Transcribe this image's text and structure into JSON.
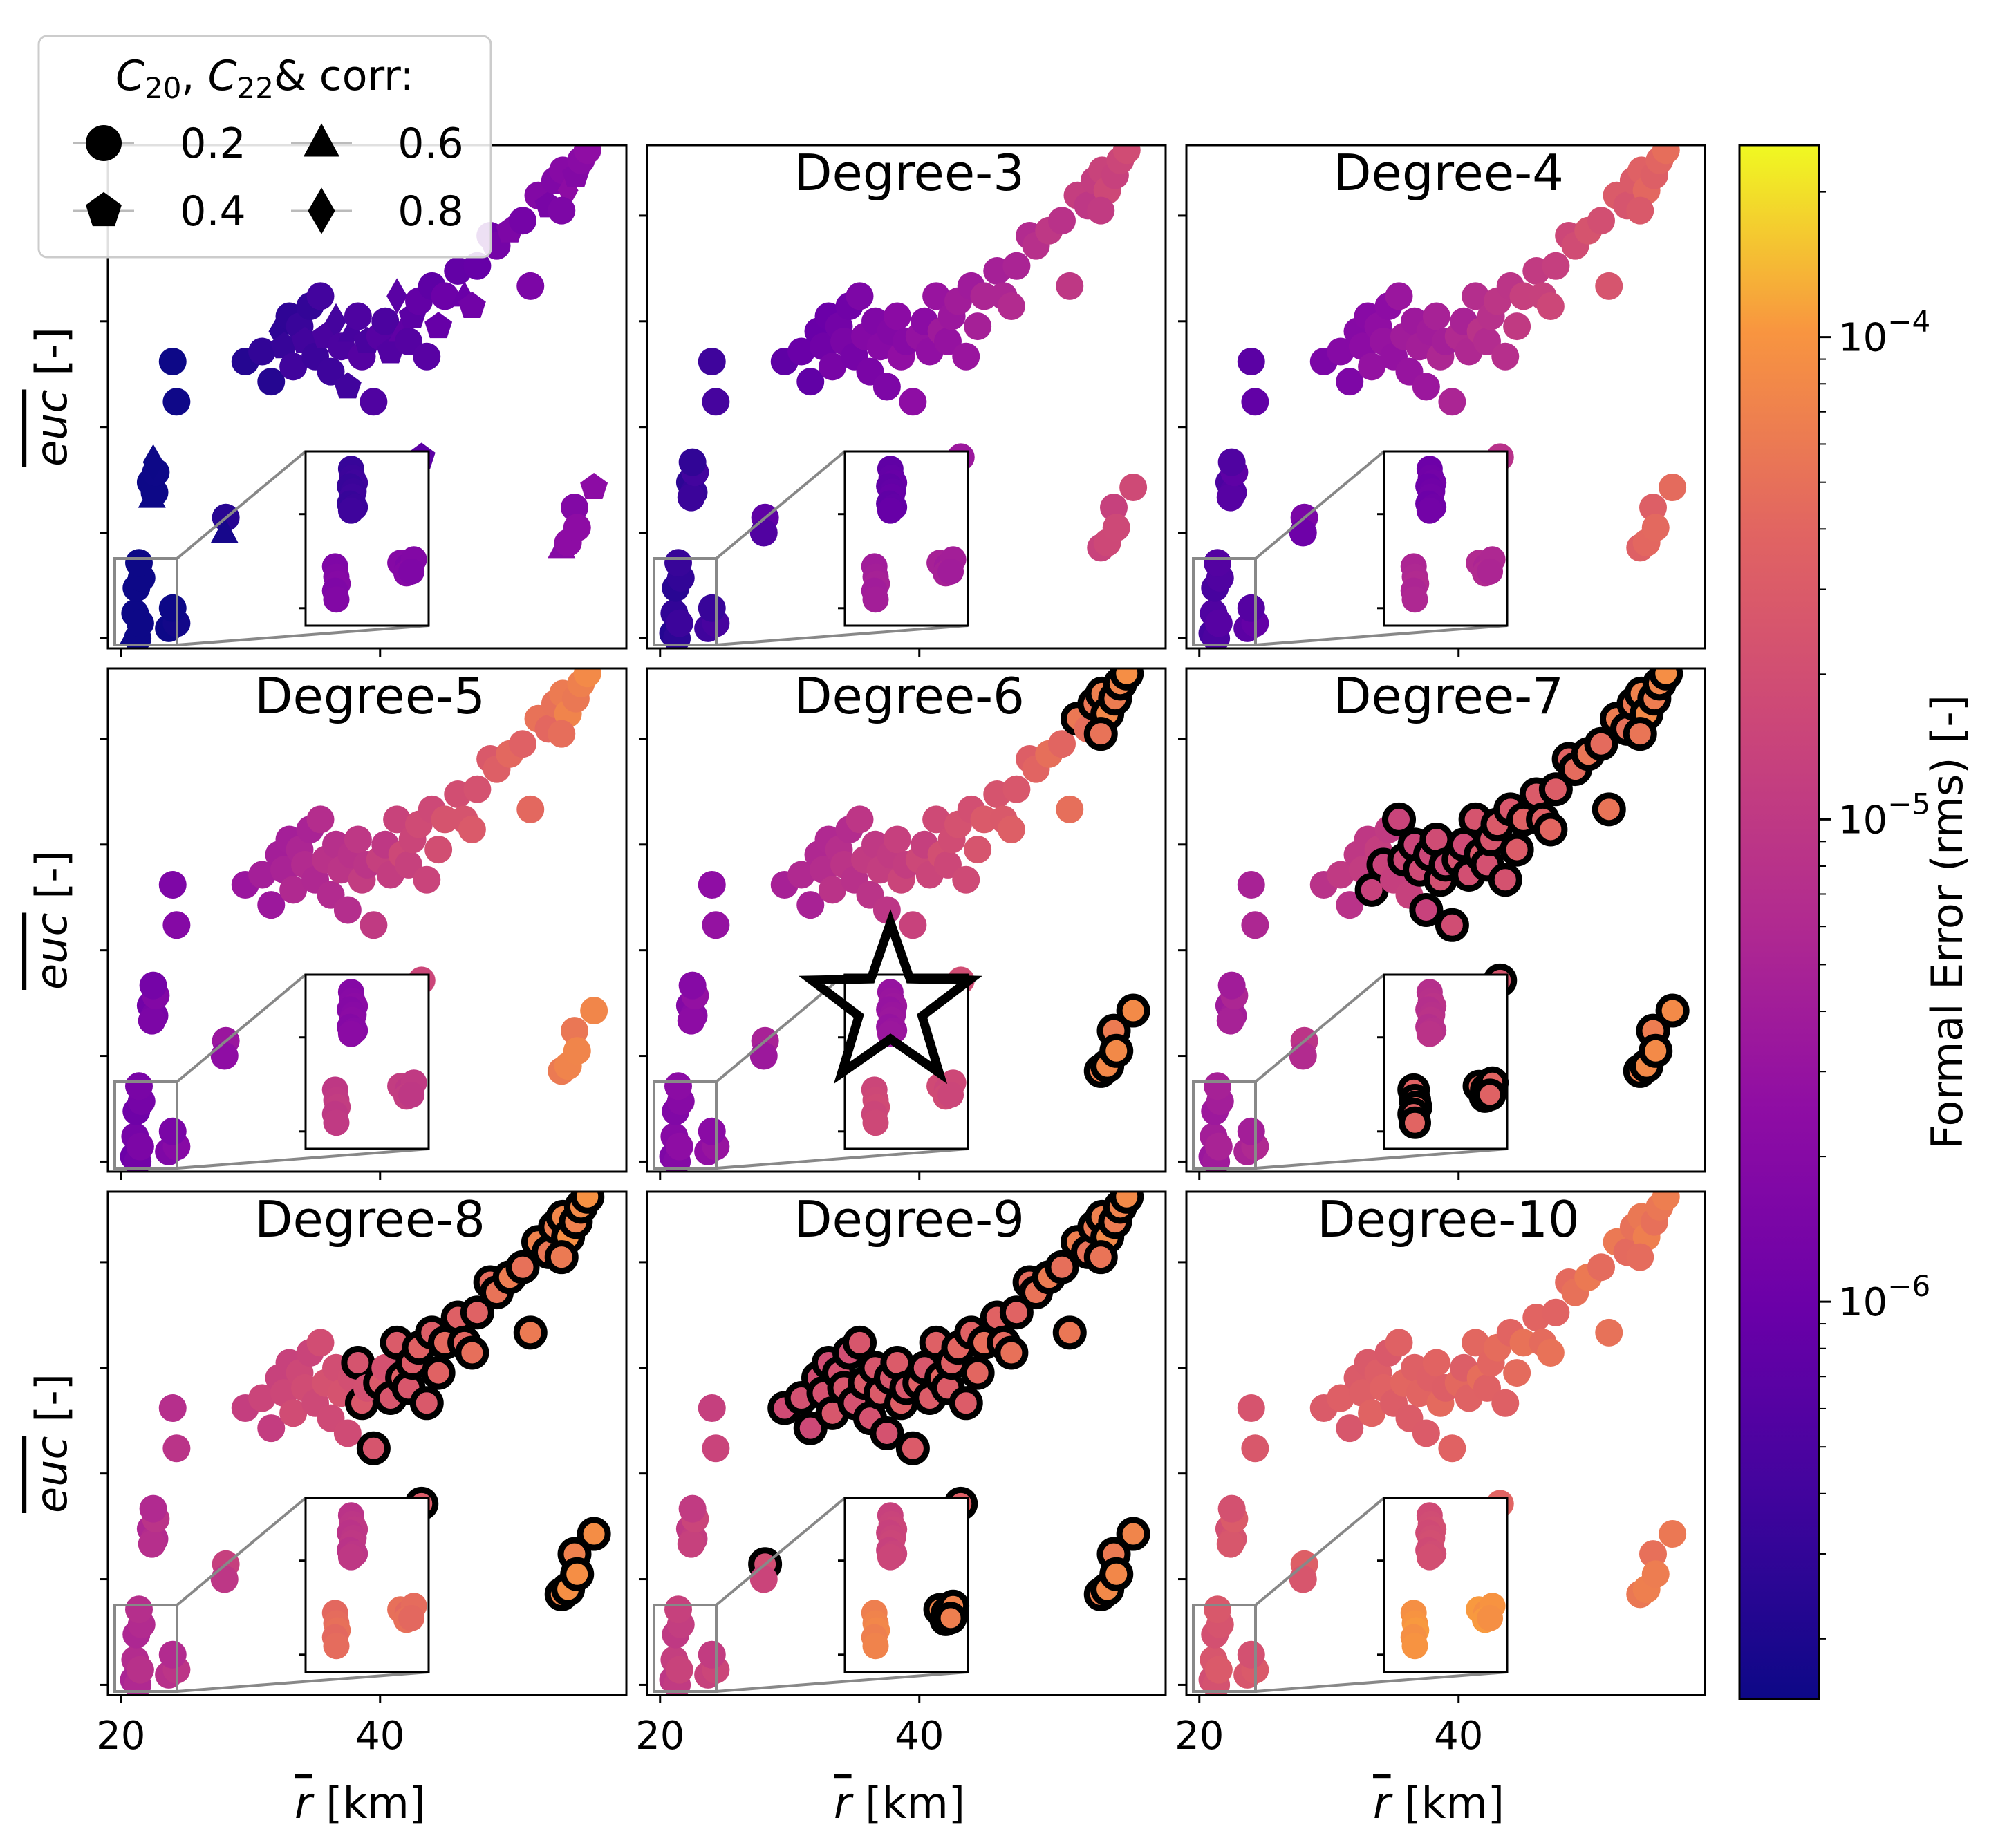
{
  "chart_data": {
    "type": "scatter",
    "layout": "3x3 grid of subplots sharing axes",
    "xlabel": "r̄ [km]",
    "ylabel": "euc [-]",
    "ylabel_overline": "euc",
    "ylabel_suffix": " [-]",
    "xlabel_symbol": "r",
    "xlabel_suffix": " [km]",
    "xlim": [
      19,
      59
    ],
    "ylim": [
      0,
      1
    ],
    "xticks": [
      20,
      40
    ],
    "xtick_labels": [
      "20",
      "40"
    ],
    "panels": [
      {
        "title": "",
        "shape_variant": true
      },
      {
        "title": "Degree-3"
      },
      {
        "title": "Degree-4"
      },
      {
        "title": "Degree-5"
      },
      {
        "title": "Degree-6",
        "marker_star": true
      },
      {
        "title": "Degree-7"
      },
      {
        "title": "Degree-8"
      },
      {
        "title": "Degree-9"
      },
      {
        "title": "Degree-10"
      }
    ],
    "colorbar": {
      "label": "Formal Error (rms) [-]",
      "scale": "log",
      "range": [
        1.5e-07,
        0.00025
      ],
      "colormap": "plasma",
      "ticks": [
        {
          "value": 1e-06,
          "base": "10",
          "exp": "−6"
        },
        {
          "value": 1e-05,
          "base": "10",
          "exp": "−5"
        },
        {
          "value": 0.0001,
          "base": "10",
          "exp": "−4"
        }
      ]
    },
    "legend": {
      "title_c20": "C",
      "title_c20_sub": "20",
      "title_sep": ", ",
      "title_c22": "C",
      "title_c22_sub": "22",
      "title_rest": "& corr:",
      "position": "top-left",
      "entries": [
        {
          "label": "0.2",
          "marker": "circle"
        },
        {
          "label": "0.4",
          "marker": "pentagon"
        },
        {
          "label": "0.6",
          "marker": "triangle"
        },
        {
          "label": "0.8",
          "marker": "diamond"
        }
      ]
    },
    "points": [
      [
        21.0,
        0.03
      ],
      [
        21.3,
        0.02
      ],
      [
        21.1,
        0.07
      ],
      [
        21.5,
        0.05
      ],
      [
        21.2,
        0.12
      ],
      [
        21.6,
        0.14
      ],
      [
        21.4,
        0.17
      ],
      [
        22.3,
        0.33
      ],
      [
        22.6,
        0.31
      ],
      [
        22.4,
        0.3
      ],
      [
        22.7,
        0.35
      ],
      [
        22.5,
        0.37
      ],
      [
        23.7,
        0.04
      ],
      [
        24.3,
        0.05
      ],
      [
        24.0,
        0.08
      ],
      [
        24.0,
        0.57
      ],
      [
        24.3,
        0.49
      ],
      [
        28.1,
        0.26
      ],
      [
        28.0,
        0.23
      ],
      [
        29.6,
        0.57
      ],
      [
        30.9,
        0.59
      ],
      [
        31.6,
        0.53
      ],
      [
        32.2,
        0.63
      ],
      [
        32.6,
        0.6
      ],
      [
        33.3,
        0.56
      ],
      [
        33.0,
        0.66
      ],
      [
        33.8,
        0.64
      ],
      [
        34.2,
        0.61
      ],
      [
        34.6,
        0.68
      ],
      [
        35.0,
        0.58
      ],
      [
        35.4,
        0.7
      ],
      [
        35.8,
        0.62
      ],
      [
        36.2,
        0.55
      ],
      [
        36.6,
        0.65
      ],
      [
        37.0,
        0.6
      ],
      [
        37.5,
        0.52
      ],
      [
        37.8,
        0.63
      ],
      [
        38.3,
        0.66
      ],
      [
        38.6,
        0.58
      ],
      [
        39.0,
        0.61
      ],
      [
        39.5,
        0.49
      ],
      [
        40.0,
        0.62
      ],
      [
        40.4,
        0.65
      ],
      [
        40.8,
        0.59
      ],
      [
        41.3,
        0.7
      ],
      [
        41.7,
        0.63
      ],
      [
        42.2,
        0.61
      ],
      [
        42.5,
        0.66
      ],
      [
        43.0,
        0.69
      ],
      [
        43.6,
        0.58
      ],
      [
        44.0,
        0.72
      ],
      [
        44.5,
        0.64
      ],
      [
        45.0,
        0.7
      ],
      [
        46.0,
        0.75
      ],
      [
        46.5,
        0.7
      ],
      [
        47.1,
        0.68
      ],
      [
        47.5,
        0.76
      ],
      [
        48.5,
        0.82
      ],
      [
        49.0,
        0.8
      ],
      [
        50.0,
        0.83
      ],
      [
        51.0,
        0.85
      ],
      [
        51.6,
        0.72
      ],
      [
        52.2,
        0.9
      ],
      [
        53.0,
        0.88
      ],
      [
        53.5,
        0.93
      ],
      [
        54.1,
        0.95
      ],
      [
        54.5,
        0.91
      ],
      [
        55.1,
        0.94
      ],
      [
        55.5,
        0.97
      ],
      [
        56.0,
        0.99
      ],
      [
        54.0,
        0.87
      ],
      [
        43.2,
        0.38
      ],
      [
        54.0,
        0.2
      ],
      [
        54.5,
        0.21
      ],
      [
        55.0,
        0.28
      ],
      [
        56.5,
        0.32
      ],
      [
        55.2,
        0.24
      ]
    ],
    "inset_points": [
      [
        0.37,
        0.9
      ],
      [
        0.38,
        0.85
      ],
      [
        0.4,
        0.82
      ],
      [
        0.36,
        0.8
      ],
      [
        0.39,
        0.77
      ],
      [
        0.38,
        0.74
      ],
      [
        0.36,
        0.7
      ],
      [
        0.4,
        0.68
      ],
      [
        0.37,
        0.66
      ],
      [
        0.24,
        0.34
      ],
      [
        0.25,
        0.28
      ],
      [
        0.26,
        0.24
      ],
      [
        0.24,
        0.2
      ],
      [
        0.25,
        0.15
      ],
      [
        0.77,
        0.36
      ],
      [
        0.83,
        0.34
      ],
      [
        0.88,
        0.38
      ],
      [
        0.82,
        0.3
      ],
      [
        0.86,
        0.31
      ]
    ]
  }
}
